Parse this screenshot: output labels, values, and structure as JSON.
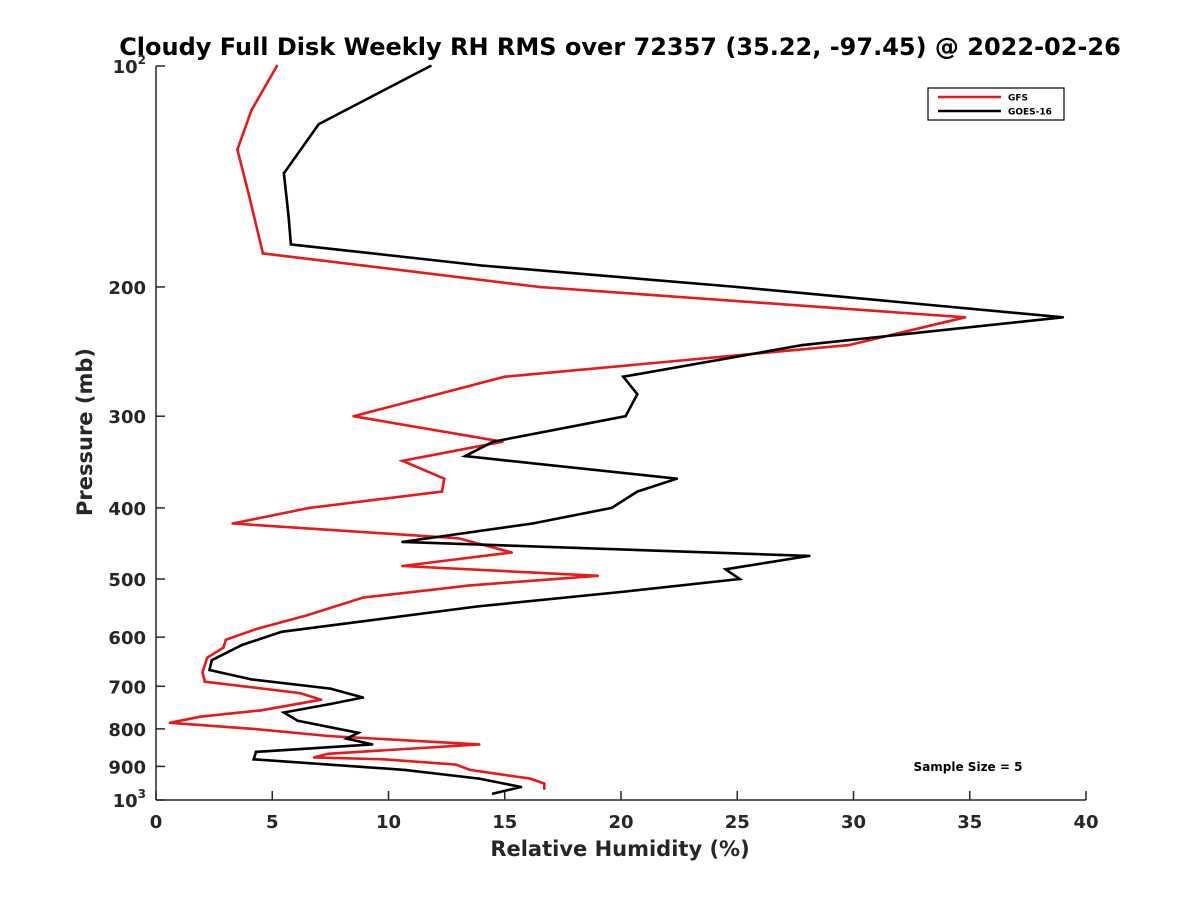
{
  "chart_data": {
    "type": "line",
    "title": "Cloudy Full Disk Weekly RH RMS over 72357 (35.22, -97.45) @ 2022-02-26",
    "xlabel": "Relative Humidity (%)",
    "ylabel": "Pressure (mb)",
    "xlim": [
      0,
      40
    ],
    "ylim": [
      100,
      1000
    ],
    "y_scale": "log",
    "y_reversed": true,
    "grid": false,
    "legend_position": "top-right",
    "x_ticks": [
      {
        "value": 0,
        "label": "0"
      },
      {
        "value": 5,
        "label": "5"
      },
      {
        "value": 10,
        "label": "10"
      },
      {
        "value": 15,
        "label": "15"
      },
      {
        "value": 20,
        "label": "20"
      },
      {
        "value": 25,
        "label": "25"
      },
      {
        "value": 30,
        "label": "30"
      },
      {
        "value": 35,
        "label": "35"
      },
      {
        "value": 40,
        "label": "40"
      }
    ],
    "y_ticks": [
      {
        "value": 100,
        "base": "10",
        "exp": "2"
      },
      {
        "value": 200,
        "label": "200"
      },
      {
        "value": 300,
        "label": "300"
      },
      {
        "value": 400,
        "label": "400"
      },
      {
        "value": 500,
        "label": "500"
      },
      {
        "value": 600,
        "label": "600"
      },
      {
        "value": 700,
        "label": "700"
      },
      {
        "value": 800,
        "label": "800"
      },
      {
        "value": 900,
        "label": "900"
      },
      {
        "value": 1000,
        "base": "10",
        "exp": "3"
      }
    ],
    "series": [
      {
        "name": "GFS",
        "color": "#e41a1c",
        "points": [
          [
            5.2,
            100
          ],
          [
            4.1,
            115
          ],
          [
            3.5,
            130
          ],
          [
            4.0,
            150
          ],
          [
            4.6,
            180
          ],
          [
            16.5,
            200
          ],
          [
            34.8,
            220
          ],
          [
            29.8,
            240
          ],
          [
            15.0,
            265
          ],
          [
            8.5,
            300
          ],
          [
            14.9,
            325
          ],
          [
            10.6,
            345
          ],
          [
            12.4,
            365
          ],
          [
            12.3,
            380
          ],
          [
            6.6,
            400
          ],
          [
            3.3,
            420
          ],
          [
            13.0,
            440
          ],
          [
            15.3,
            460
          ],
          [
            10.6,
            480
          ],
          [
            19.0,
            495
          ],
          [
            13.5,
            510
          ],
          [
            8.9,
            530
          ],
          [
            6.5,
            560
          ],
          [
            4.3,
            585
          ],
          [
            3.0,
            605
          ],
          [
            2.9,
            620
          ],
          [
            2.2,
            640
          ],
          [
            2.0,
            670
          ],
          [
            2.1,
            690
          ],
          [
            6.2,
            715
          ],
          [
            7.1,
            730
          ],
          [
            4.5,
            755
          ],
          [
            1.9,
            770
          ],
          [
            0.6,
            785
          ],
          [
            4.2,
            800
          ],
          [
            7.4,
            818
          ],
          [
            13.9,
            840
          ],
          [
            7.4,
            865
          ],
          [
            6.8,
            875
          ],
          [
            9.8,
            880
          ],
          [
            12.9,
            895
          ],
          [
            13.5,
            910
          ],
          [
            16.1,
            935
          ],
          [
            16.7,
            950
          ],
          [
            16.7,
            965
          ]
        ]
      },
      {
        "name": "GOES-16",
        "color": "#000000",
        "points": [
          [
            11.8,
            100
          ],
          [
            7.0,
            120
          ],
          [
            5.5,
            140
          ],
          [
            5.7,
            160
          ],
          [
            5.8,
            175
          ],
          [
            14.0,
            187
          ],
          [
            25.0,
            200
          ],
          [
            39.0,
            220
          ],
          [
            27.8,
            240
          ],
          [
            20.1,
            265
          ],
          [
            20.7,
            280
          ],
          [
            20.2,
            300
          ],
          [
            14.5,
            325
          ],
          [
            13.3,
            340
          ],
          [
            22.4,
            365
          ],
          [
            20.7,
            380
          ],
          [
            19.6,
            400
          ],
          [
            16.2,
            420
          ],
          [
            10.6,
            445
          ],
          [
            28.1,
            465
          ],
          [
            24.5,
            485
          ],
          [
            25.1,
            500
          ],
          [
            20.2,
            520
          ],
          [
            13.8,
            545
          ],
          [
            5.4,
            590
          ],
          [
            3.7,
            615
          ],
          [
            2.4,
            645
          ],
          [
            2.3,
            665
          ],
          [
            4.1,
            685
          ],
          [
            7.5,
            705
          ],
          [
            8.9,
            725
          ],
          [
            7.5,
            740
          ],
          [
            5.5,
            760
          ],
          [
            6.1,
            780
          ],
          [
            8.7,
            810
          ],
          [
            8.2,
            825
          ],
          [
            9.3,
            840
          ],
          [
            4.3,
            860
          ],
          [
            4.2,
            880
          ],
          [
            10.7,
            910
          ],
          [
            13.9,
            935
          ],
          [
            15.7,
            960
          ],
          [
            14.5,
            980
          ]
        ]
      }
    ],
    "annotations": [
      {
        "text": "Sample Size = 5"
      }
    ]
  }
}
